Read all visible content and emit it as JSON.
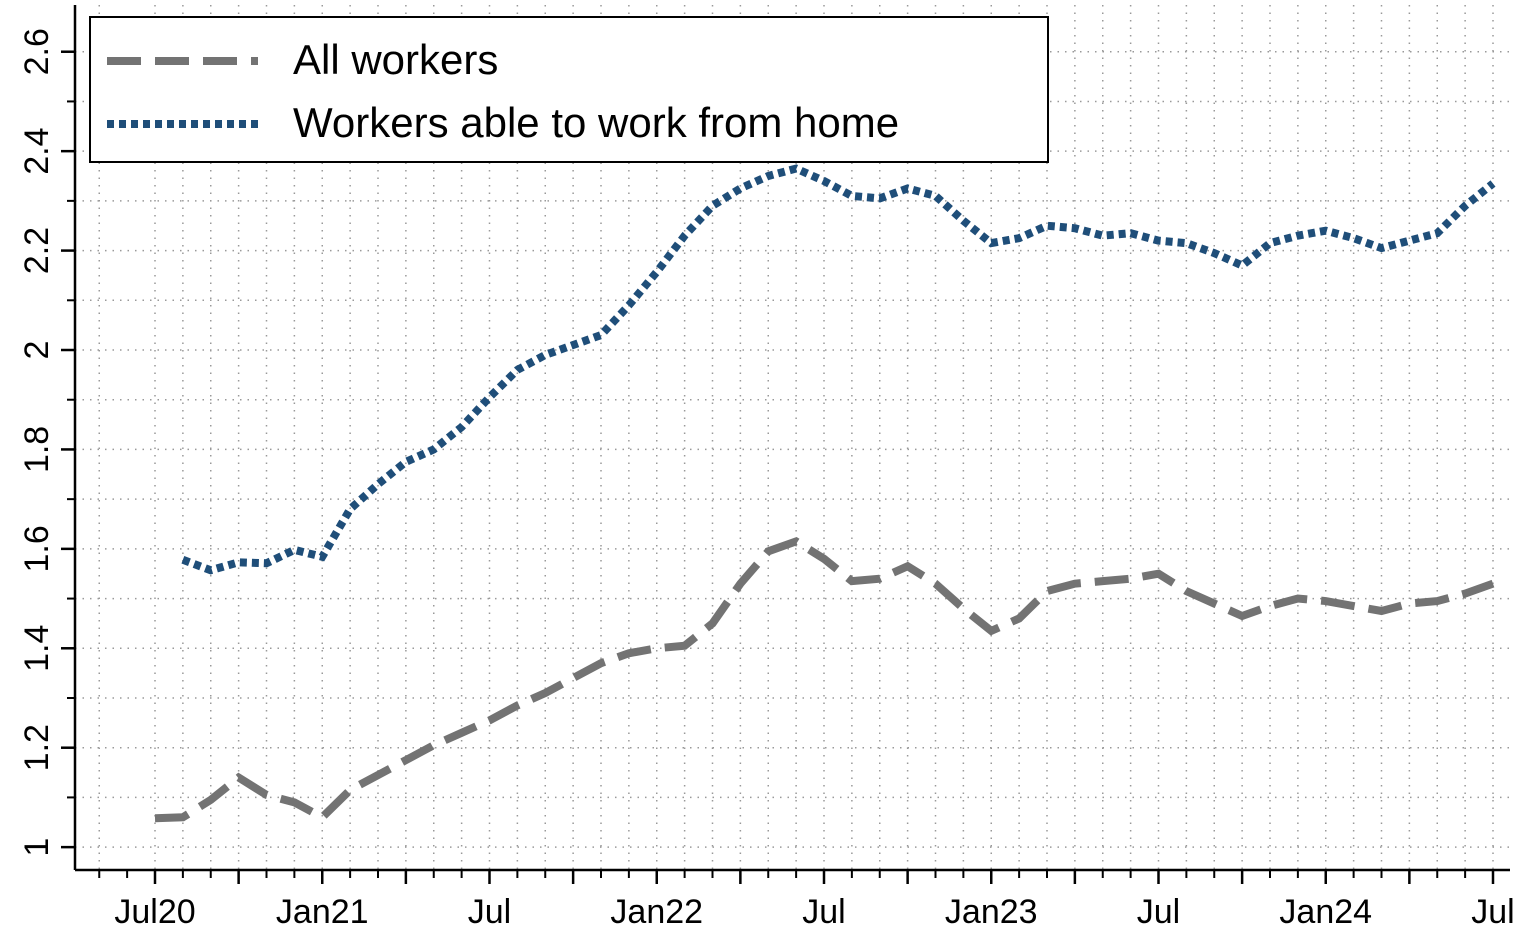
{
  "chart_data": {
    "type": "line",
    "categories": [
      "Jul20",
      null,
      null,
      null,
      null,
      null,
      "Jan21",
      null,
      null,
      null,
      null,
      null,
      "Jul",
      null,
      null,
      null,
      null,
      null,
      "Jan22",
      null,
      null,
      null,
      null,
      null,
      "Jul",
      null,
      null,
      null,
      null,
      null,
      "Jan23",
      null,
      null,
      null,
      null,
      null,
      "Jul",
      null,
      null,
      null,
      null,
      null,
      "Jan24",
      null,
      null,
      null,
      null,
      null,
      "Jul"
    ],
    "series": [
      {
        "name": "All workers",
        "color": "#737373",
        "dash": "dashed",
        "values": [
          1.058,
          1.06,
          1.095,
          1.14,
          1.105,
          1.09,
          1.06,
          1.115,
          1.145,
          1.175,
          1.205,
          1.23,
          1.255,
          1.285,
          1.31,
          1.34,
          1.37,
          1.39,
          1.4,
          1.405,
          1.45,
          1.53,
          1.595,
          1.615,
          1.58,
          1.535,
          1.54,
          1.565,
          1.53,
          1.48,
          1.435,
          1.46,
          1.515,
          1.53,
          1.535,
          1.54,
          1.55,
          1.515,
          1.49,
          1.465,
          1.485,
          1.5,
          1.495,
          1.485,
          1.475,
          1.49,
          1.495,
          1.51,
          1.53
        ]
      },
      {
        "name": "Workers able to work from home",
        "color": "#1f4e79",
        "dash": "dotted",
        "values": [
          null,
          1.578,
          1.557,
          1.573,
          1.571,
          1.598,
          1.584,
          1.68,
          1.73,
          1.775,
          1.8,
          1.845,
          1.905,
          1.96,
          1.99,
          2.01,
          2.03,
          2.09,
          2.157,
          2.23,
          2.29,
          2.325,
          2.35,
          2.365,
          2.34,
          2.31,
          2.305,
          2.325,
          2.31,
          2.26,
          2.215,
          2.225,
          2.25,
          2.245,
          2.23,
          2.235,
          2.22,
          2.215,
          2.195,
          2.17,
          2.215,
          2.23,
          2.24,
          2.225,
          2.205,
          2.22,
          2.235,
          2.29,
          2.335
        ]
      }
    ],
    "ylim": [
      0.954,
      2.694
    ],
    "yticks": [
      1,
      1.2,
      1.4,
      1.6,
      1.8,
      2,
      2.2,
      2.4,
      2.6
    ],
    "yminorticks": [
      1.1,
      1.3,
      1.5,
      1.7,
      1.9,
      2.1,
      2.3,
      2.5
    ],
    "grid": true,
    "legend": "top-left"
  }
}
